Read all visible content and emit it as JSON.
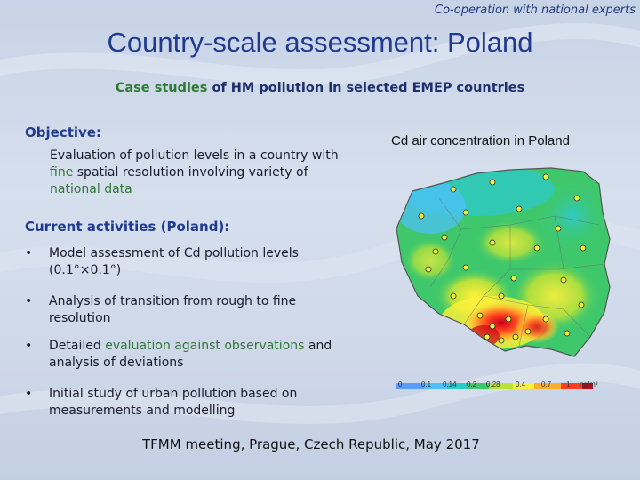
{
  "header": {
    "tagline": "Co-operation with national experts",
    "title": "Country-scale assessment: Poland"
  },
  "subtitle": {
    "part1": "Case studies",
    "part2": " of HM pollution in selected EMEP countries"
  },
  "objective": {
    "heading": "Objective:",
    "body_part1": "Evaluation of pollution levels in a country with ",
    "fine": "fine",
    "body_part2": " spatial resolution involving variety of ",
    "national_data": "national data"
  },
  "map": {
    "caption": "Cd air concentration in Poland",
    "legend": {
      "ticks": [
        "0",
        "0.1",
        "0.14",
        "0.2",
        "0.28",
        "0.4",
        "0.7",
        "1"
      ],
      "unit": "ng/m³",
      "colors": [
        "#5a9bff",
        "#4fc0ff",
        "#2ec9c7",
        "#3fc86b",
        "#b8e13a",
        "#fff13b",
        "#ffad2b",
        "#ff3d1f",
        "#c8001a"
      ]
    }
  },
  "activities": {
    "heading": "Current activities (Poland):",
    "bullets": [
      {
        "text": "Model assessment of Cd pollution levels (0.1°×0.1°)"
      },
      {
        "text": "Analysis of transition from rough to fine resolution"
      },
      {
        "text_part1": "Detailed ",
        "green": "evaluation against observations",
        "text_part2": " and analysis of deviations"
      },
      {
        "text": "Initial study of urban pollution based on measurements and modelling"
      }
    ]
  },
  "footer": {
    "text": "TFMM meeting, Prague, Czech Republic, May 2017"
  }
}
